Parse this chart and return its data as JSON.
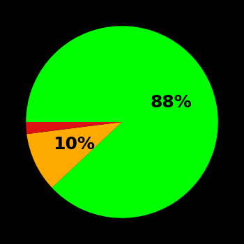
{
  "slices": [
    88,
    10,
    2
  ],
  "colors": [
    "#00ff00",
    "#ffaa00",
    "#dd1111"
  ],
  "labels": [
    "88%",
    "10%",
    ""
  ],
  "background_color": "#000000",
  "text_color": "#000000",
  "label_fontsize": 18,
  "label_fontweight": "bold",
  "startangle": 180,
  "figsize": [
    3.5,
    3.5
  ],
  "dpi": 100
}
